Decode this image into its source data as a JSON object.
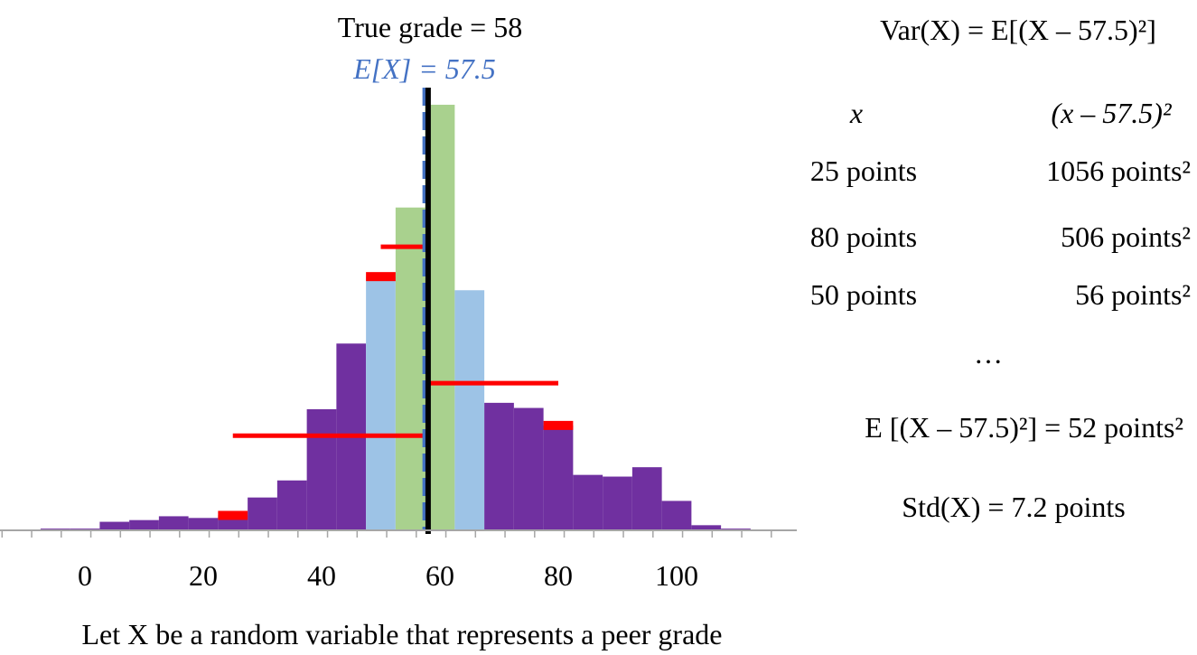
{
  "chart_data": {
    "type": "bar",
    "title": "True grade = 58",
    "expected_label": "E[X] = 57.5",
    "xlabel": "Let X be a random variable that represents a peer grade",
    "xlim": [
      -14,
      120
    ],
    "xticks": [
      0,
      20,
      40,
      60,
      80,
      100
    ],
    "ylim": [
      0,
      1
    ],
    "bin_width": 5,
    "bins": [
      {
        "center": -5,
        "value": 0.004,
        "color": "#7030a0"
      },
      {
        "center": 0,
        "value": 0.004,
        "color": "#7030a0"
      },
      {
        "center": 5,
        "value": 0.02,
        "color": "#7030a0"
      },
      {
        "center": 10,
        "value": 0.024,
        "color": "#7030a0"
      },
      {
        "center": 15,
        "value": 0.033,
        "color": "#7030a0"
      },
      {
        "center": 20,
        "value": 0.029,
        "color": "#7030a0"
      },
      {
        "center": 25,
        "value": 0.035,
        "color": "#7030a0"
      },
      {
        "center": 30,
        "value": 0.077,
        "color": "#7030a0"
      },
      {
        "center": 35,
        "value": 0.117,
        "color": "#7030a0"
      },
      {
        "center": 40,
        "value": 0.284,
        "color": "#7030a0"
      },
      {
        "center": 45,
        "value": 0.438,
        "color": "#7030a0"
      },
      {
        "center": 50,
        "value": 0.595,
        "color": "#9dc3e6"
      },
      {
        "center": 55,
        "value": 0.757,
        "color": "#a9d18e"
      },
      {
        "center": 60,
        "value": 0.998,
        "color": "#a9d18e"
      },
      {
        "center": 65,
        "value": 0.563,
        "color": "#9dc3e6"
      },
      {
        "center": 70,
        "value": 0.299,
        "color": "#7030a0"
      },
      {
        "center": 75,
        "value": 0.287,
        "color": "#7030a0"
      },
      {
        "center": 80,
        "value": 0.246,
        "color": "#7030a0"
      },
      {
        "center": 85,
        "value": 0.13,
        "color": "#7030a0"
      },
      {
        "center": 90,
        "value": 0.126,
        "color": "#7030a0"
      },
      {
        "center": 95,
        "value": 0.148,
        "color": "#7030a0"
      },
      {
        "center": 100,
        "value": 0.069,
        "color": "#7030a0"
      },
      {
        "center": 105,
        "value": 0.012,
        "color": "#7030a0"
      },
      {
        "center": 110,
        "value": 0.004,
        "color": "#7030a0"
      }
    ],
    "true_grade": 58,
    "expected_value": 57.5,
    "deviations": [
      {
        "from": 25,
        "to": 57.5,
        "level": 0.222
      },
      {
        "from": 80,
        "to": 57.5,
        "level": 0.345
      },
      {
        "from": 50,
        "to": 57.5,
        "level": 0.665
      }
    ],
    "bar_top_markers": [
      {
        "center": 25,
        "value": 0.035
      },
      {
        "center": 80,
        "value": 0.246
      },
      {
        "center": 50,
        "value": 0.595
      }
    ],
    "colors": {
      "purple": "#7030a0",
      "light_blue": "#9dc3e6",
      "green": "#a9d18e",
      "red": "#ff0000",
      "expected_line": "#4472c4",
      "true_line": "#000000",
      "axis": "#a6a6a6"
    }
  },
  "panel": {
    "var_def": "Var(X) = E[(X – 57.5)²]",
    "col_x": "x",
    "col_sq": "(x – 57.5)²",
    "rows": [
      {
        "x": "25 points",
        "sq": "1056 points²"
      },
      {
        "x": "80 points",
        "sq": "506 points²"
      },
      {
        "x": "50 points",
        "sq": "56 points²"
      }
    ],
    "ellipsis": "…",
    "expectation": "E [(X – 57.5)²] = 52 points²",
    "std": "Std(X) = 7.2 points"
  }
}
